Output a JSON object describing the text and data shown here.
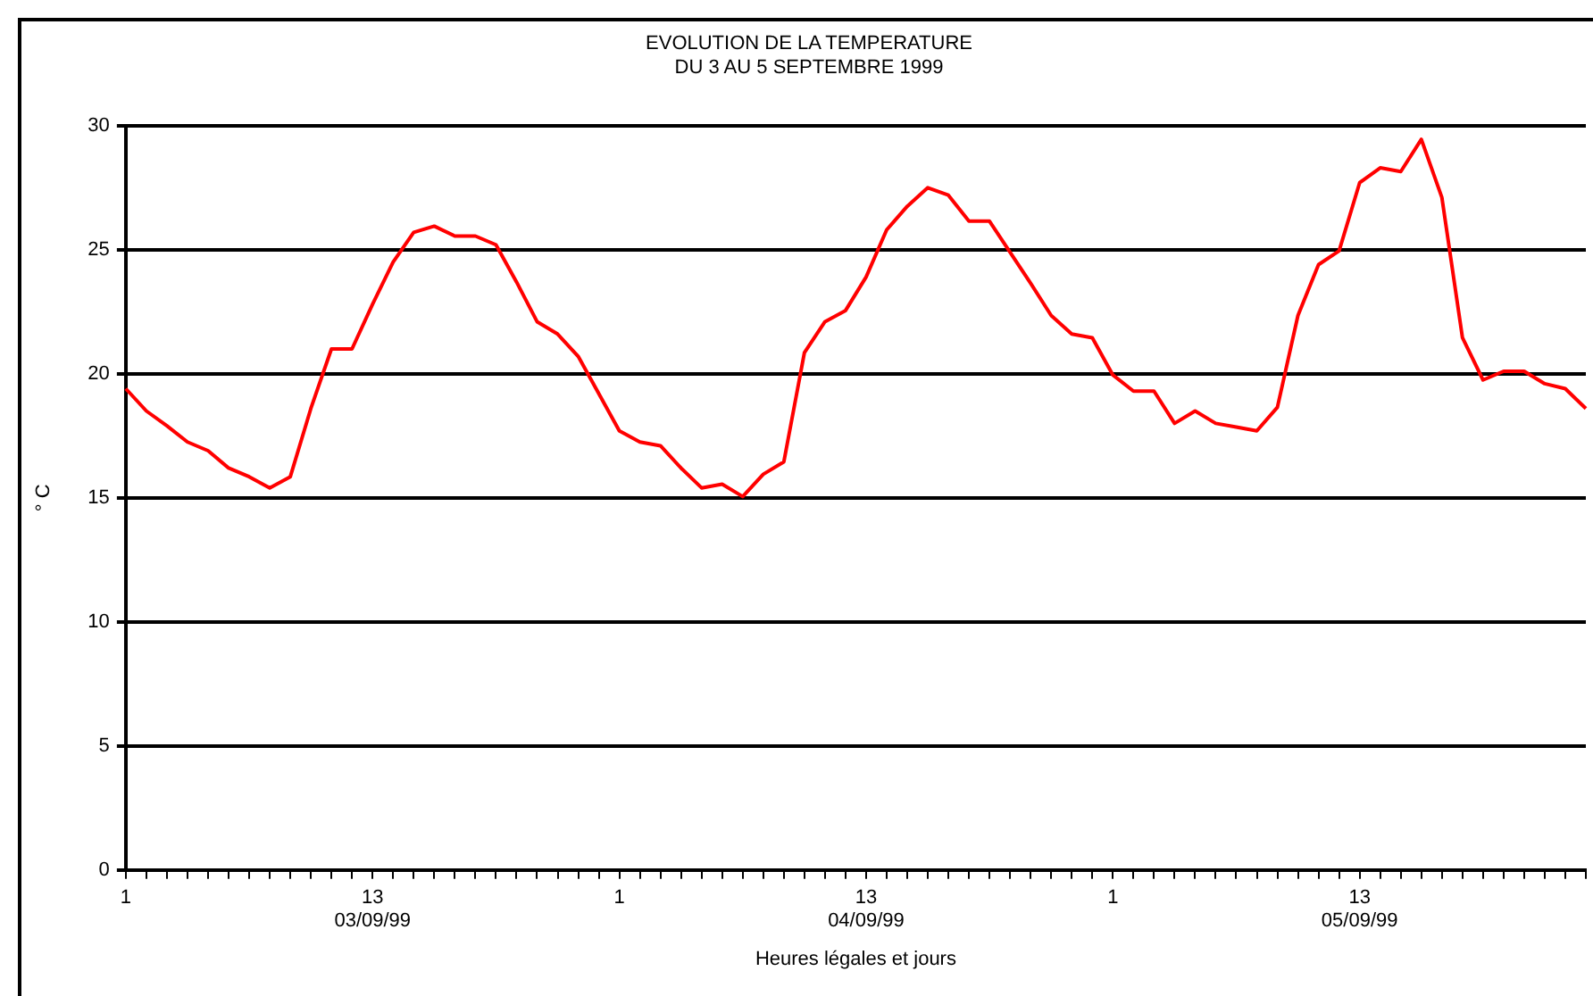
{
  "chart_data": {
    "type": "line",
    "title": "EVOLUTION DE LA TEMPERATURE\nDU 3 AU 5 SEPTEMBRE 1999",
    "xlabel": "Heures légales et jours",
    "ylabel": "° C",
    "categories": [
      "1",
      null,
      null,
      null,
      null,
      null,
      null,
      null,
      null,
      null,
      null,
      null,
      "13\n03/09/99",
      null,
      null,
      null,
      null,
      null,
      null,
      null,
      null,
      null,
      null,
      null,
      "1",
      null,
      null,
      null,
      null,
      null,
      null,
      null,
      null,
      null,
      null,
      null,
      "13\n04/09/99",
      null,
      null,
      null,
      null,
      null,
      null,
      null,
      null,
      null,
      null,
      null,
      "1",
      null,
      null,
      null,
      null,
      null,
      null,
      null,
      null,
      null,
      null,
      null,
      "13\n05/09/99",
      null,
      null,
      null,
      null,
      null,
      null,
      null,
      null,
      null,
      null,
      null
    ],
    "series": [
      {
        "color": "#ff0000",
        "values": [
          19.4,
          18.5,
          17.9,
          17.25,
          16.9,
          16.2,
          15.85,
          15.4,
          15.85,
          18.6,
          21.0,
          21.0,
          22.8,
          24.5,
          25.7,
          25.95,
          25.55,
          25.55,
          25.2,
          23.7,
          22.1,
          21.6,
          20.7,
          19.2,
          17.7,
          17.25,
          17.1,
          16.2,
          15.4,
          15.55,
          15.05,
          15.95,
          16.45,
          20.85,
          22.1,
          22.55,
          23.9,
          25.8,
          26.75,
          27.5,
          27.2,
          26.15,
          26.15,
          24.9,
          23.65,
          22.35,
          21.6,
          21.45,
          19.95,
          19.3,
          19.3,
          18.0,
          18.5,
          18.0,
          17.85,
          17.7,
          18.65,
          22.35,
          24.4,
          24.95,
          27.7,
          28.3,
          28.15,
          29.45,
          27.1,
          21.45,
          19.75,
          20.1,
          20.1,
          19.6,
          19.4,
          18.6
        ]
      }
    ],
    "ylim": [
      0,
      30
    ],
    "yticks": [
      0,
      5,
      10,
      15,
      20,
      25,
      30
    ],
    "grid": "y",
    "legend": false,
    "marker": "none",
    "line_style": "solid"
  }
}
